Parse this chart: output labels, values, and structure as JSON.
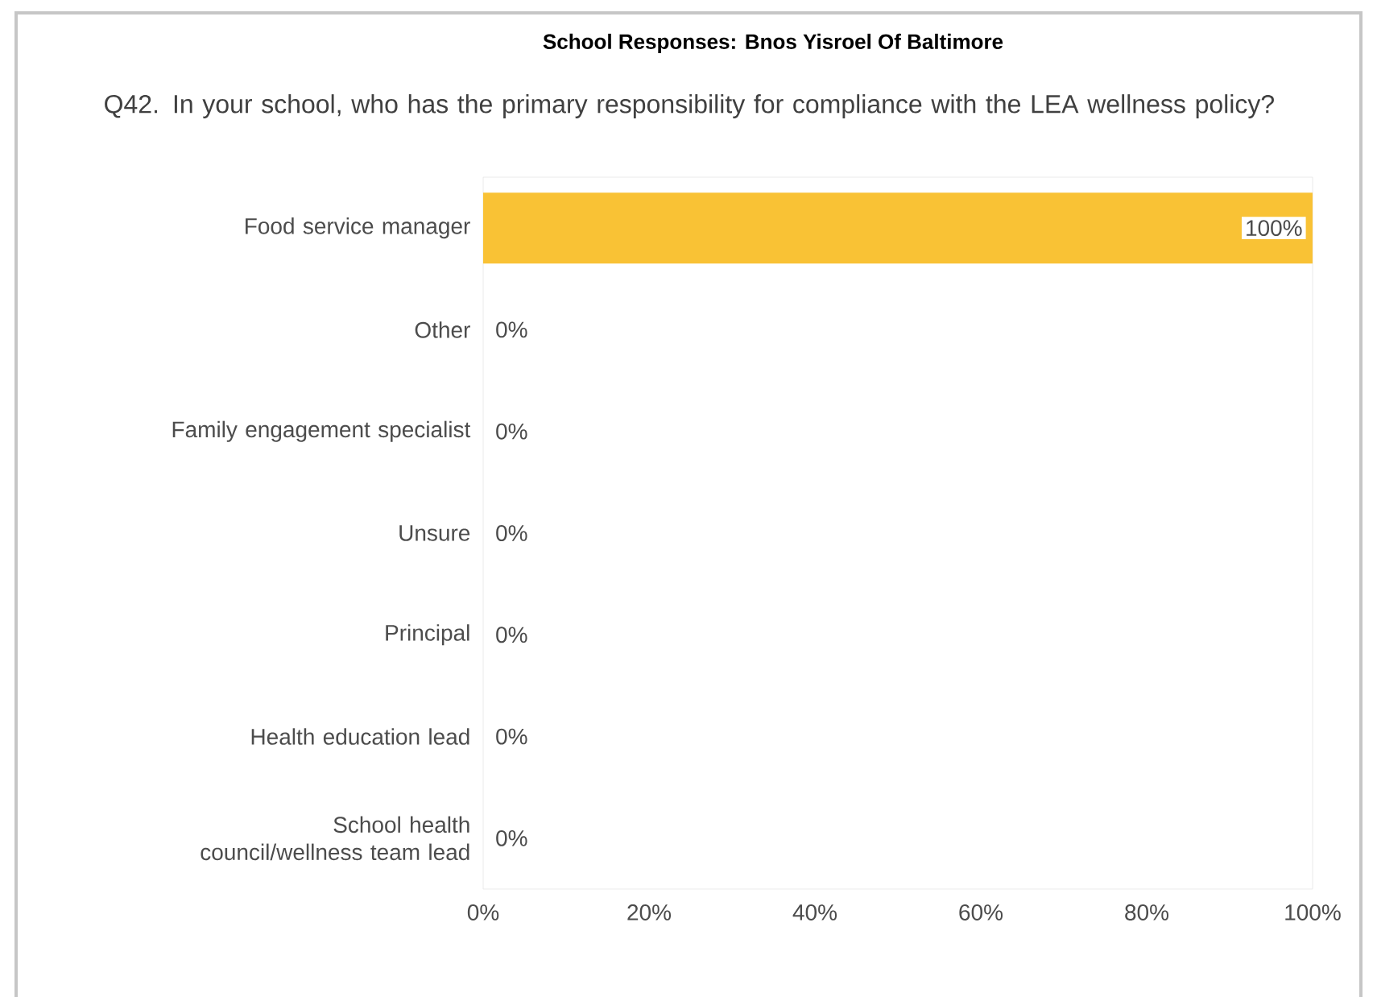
{
  "chart_data": {
    "type": "bar",
    "orientation": "horizontal",
    "title": "School Responses: Bnos Yisroel Of Baltimore",
    "subtitle": "Q42. In your school, who has the primary responsibility for compliance with the LEA wellness policy?",
    "categories": [
      "Food service manager",
      "Other",
      "Family engagement specialist",
      "Unsure",
      "Principal",
      "Health education lead",
      "School health council/wellness team lead"
    ],
    "values": [
      100,
      0,
      0,
      0,
      0,
      0,
      0
    ],
    "value_labels": [
      "100%",
      "0%",
      "0%",
      "0%",
      "0%",
      "0%",
      "0%"
    ],
    "color": "#f9c235",
    "xlim": [
      0,
      100
    ],
    "xticks": [
      {
        "value": 0,
        "label": "0%"
      },
      {
        "value": 20,
        "label": "20%"
      },
      {
        "value": 40,
        "label": "40%"
      },
      {
        "value": 60,
        "label": "60%"
      },
      {
        "value": 80,
        "label": "80%"
      },
      {
        "value": 100,
        "label": "100%"
      }
    ],
    "grid": false
  }
}
